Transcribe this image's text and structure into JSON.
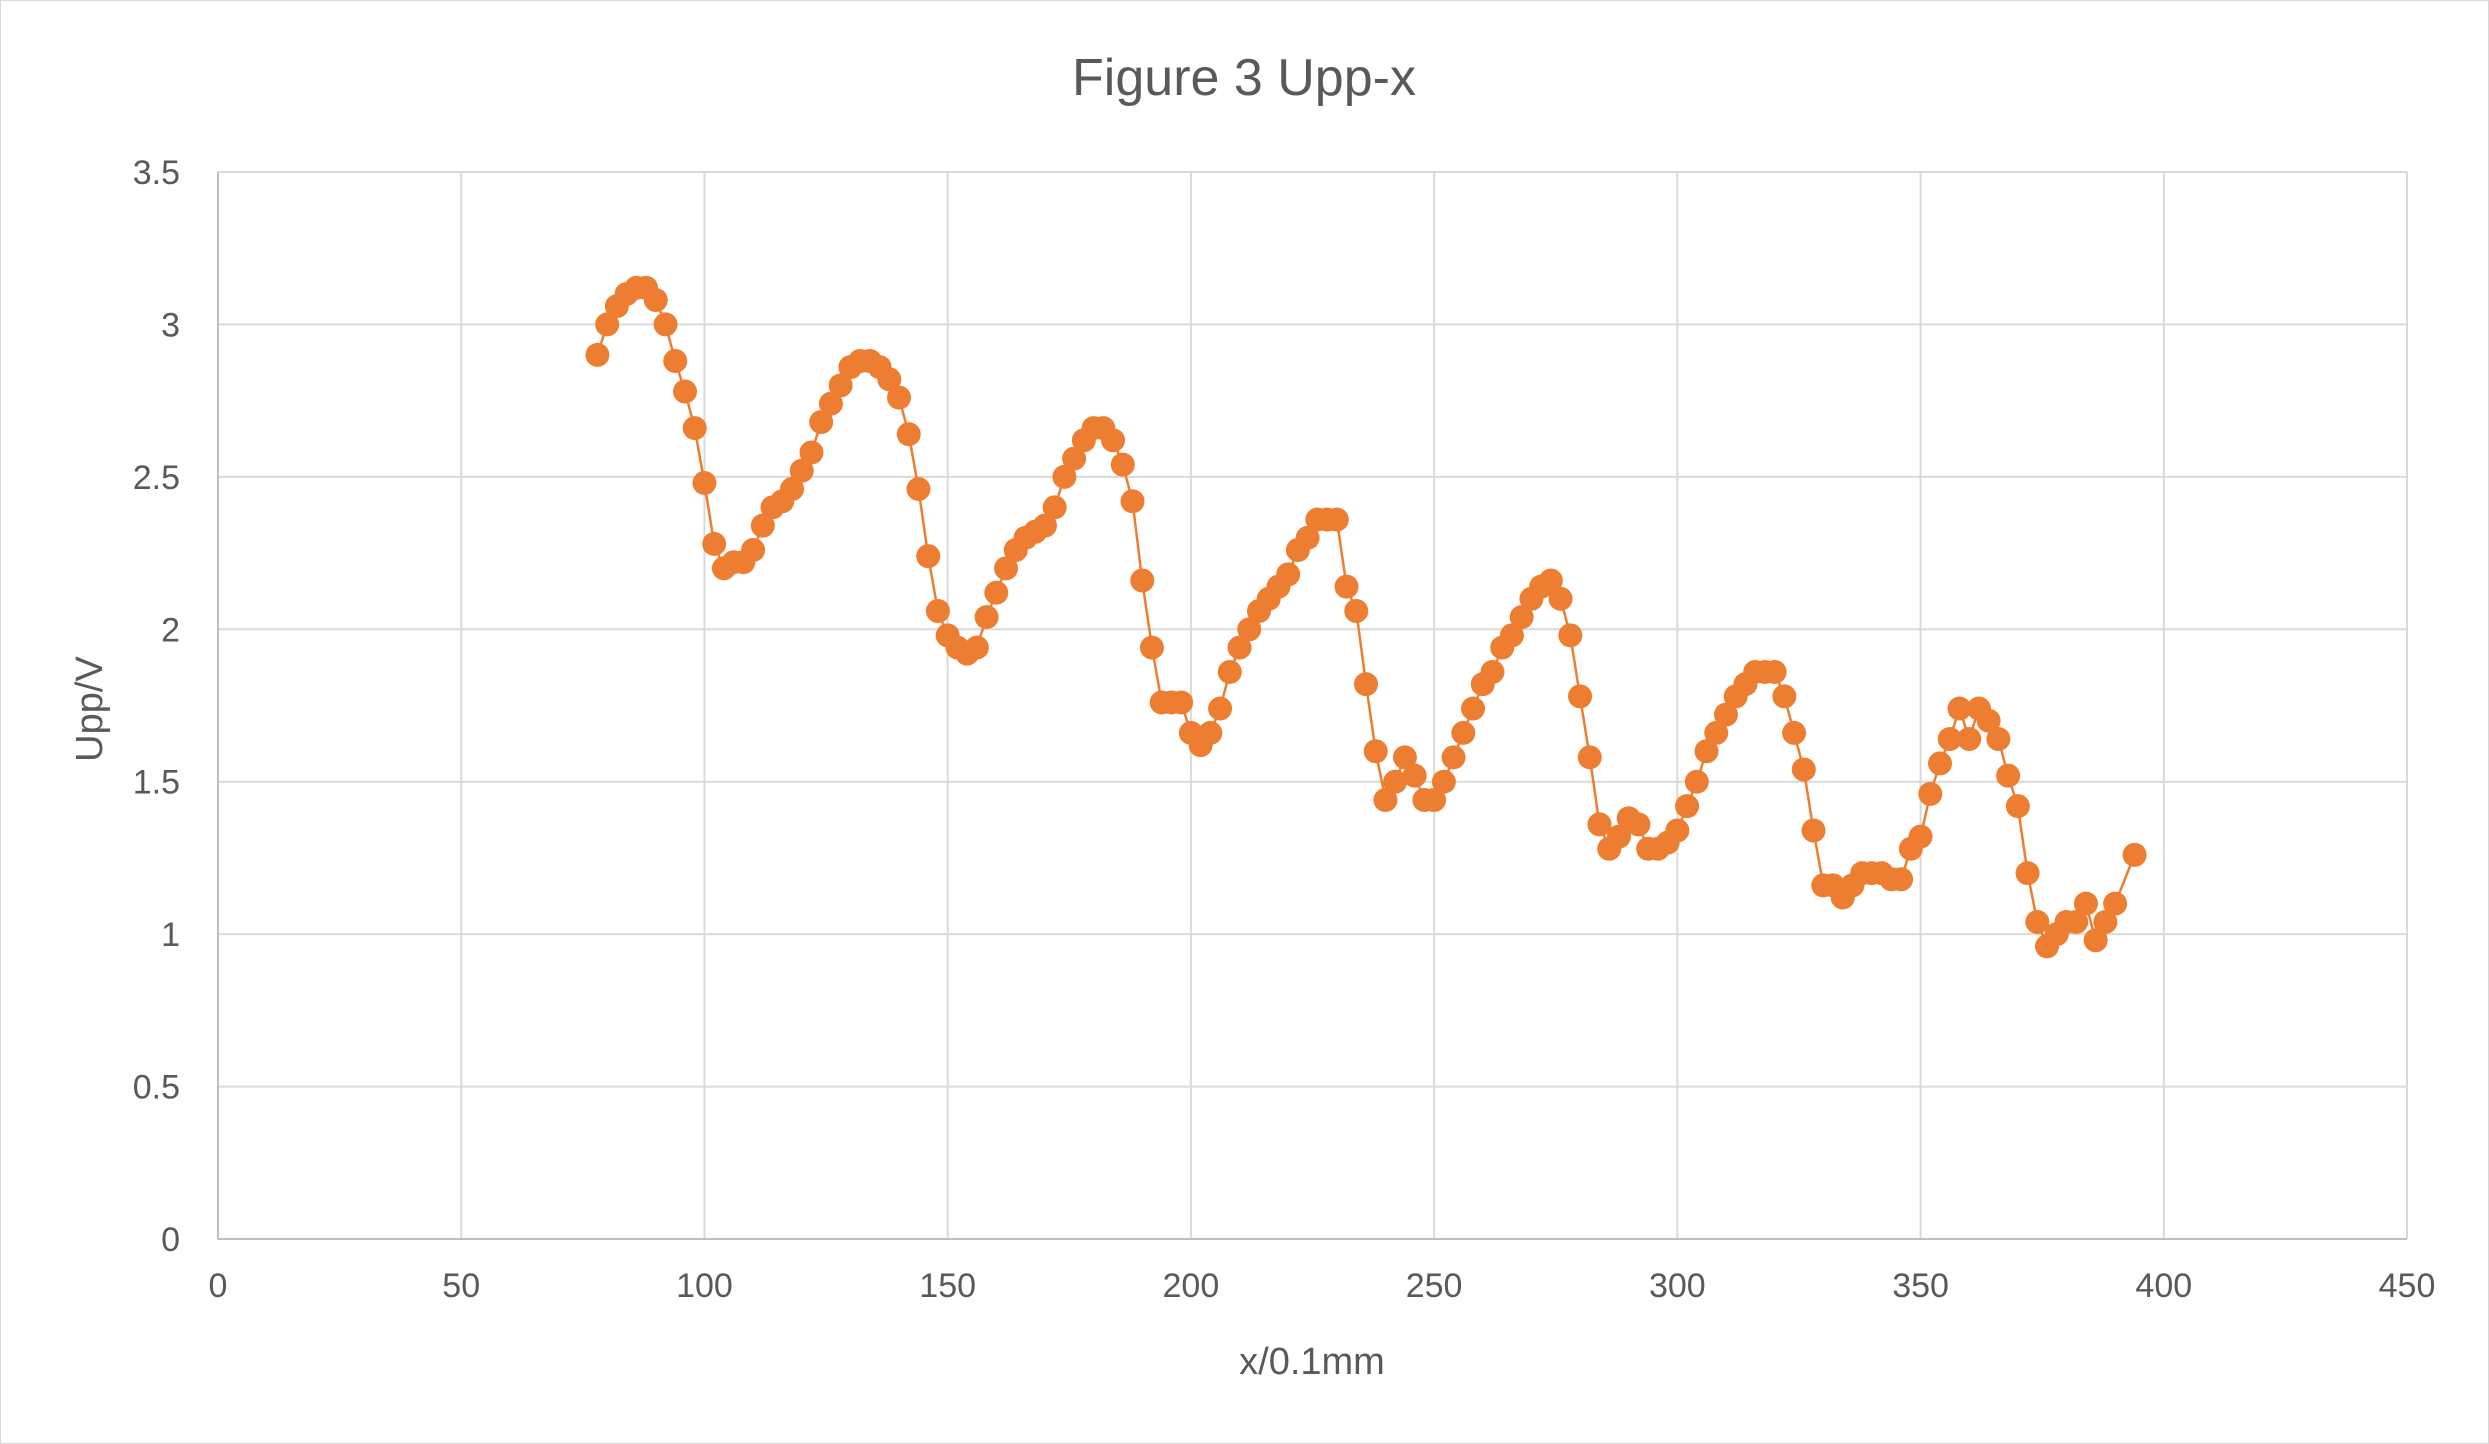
{
  "chart_data": {
    "type": "scatter",
    "title": "Figure 3  Upp-x",
    "xlabel": "x/0.1mm",
    "ylabel": "Upp/V",
    "xlim": [
      0,
      450
    ],
    "ylim": [
      0,
      3.5
    ],
    "x_ticks": [
      "0",
      "50",
      "100",
      "150",
      "200",
      "250",
      "300",
      "350",
      "400",
      "450"
    ],
    "y_ticks": [
      "0",
      "0.5",
      "1",
      "1.5",
      "2",
      "2.5",
      "3",
      "3.5"
    ],
    "grid": true,
    "legend": "none",
    "series": [
      {
        "color": "#ED7D31",
        "line": "straight-with-markers",
        "points": [
          [
            78,
            2.9
          ],
          [
            80,
            3.0
          ],
          [
            82,
            3.06
          ],
          [
            84,
            3.1
          ],
          [
            86,
            3.12
          ],
          [
            88,
            3.12
          ],
          [
            90,
            3.08
          ],
          [
            92,
            3.0
          ],
          [
            94,
            2.88
          ],
          [
            96,
            2.78
          ],
          [
            98,
            2.66
          ],
          [
            100,
            2.48
          ],
          [
            102,
            2.28
          ],
          [
            104,
            2.2
          ],
          [
            106,
            2.22
          ],
          [
            108,
            2.22
          ],
          [
            110,
            2.26
          ],
          [
            112,
            2.34
          ],
          [
            114,
            2.4
          ],
          [
            116,
            2.42
          ],
          [
            118,
            2.46
          ],
          [
            120,
            2.52
          ],
          [
            122,
            2.58
          ],
          [
            124,
            2.68
          ],
          [
            126,
            2.74
          ],
          [
            128,
            2.8
          ],
          [
            130,
            2.86
          ],
          [
            132,
            2.88
          ],
          [
            134,
            2.88
          ],
          [
            136,
            2.86
          ],
          [
            138,
            2.82
          ],
          [
            140,
            2.76
          ],
          [
            142,
            2.64
          ],
          [
            144,
            2.46
          ],
          [
            146,
            2.24
          ],
          [
            148,
            2.06
          ],
          [
            150,
            1.98
          ],
          [
            152,
            1.94
          ],
          [
            154,
            1.92
          ],
          [
            156,
            1.94
          ],
          [
            158,
            2.04
          ],
          [
            160,
            2.12
          ],
          [
            162,
            2.2
          ],
          [
            164,
            2.26
          ],
          [
            166,
            2.3
          ],
          [
            168,
            2.32
          ],
          [
            170,
            2.34
          ],
          [
            172,
            2.4
          ],
          [
            174,
            2.5
          ],
          [
            176,
            2.56
          ],
          [
            178,
            2.62
          ],
          [
            180,
            2.66
          ],
          [
            182,
            2.66
          ],
          [
            184,
            2.62
          ],
          [
            186,
            2.54
          ],
          [
            188,
            2.42
          ],
          [
            190,
            2.16
          ],
          [
            192,
            1.94
          ],
          [
            194,
            1.76
          ],
          [
            196,
            1.76
          ],
          [
            198,
            1.76
          ],
          [
            200,
            1.66
          ],
          [
            202,
            1.62
          ],
          [
            204,
            1.66
          ],
          [
            206,
            1.74
          ],
          [
            208,
            1.86
          ],
          [
            210,
            1.94
          ],
          [
            212,
            2.0
          ],
          [
            214,
            2.06
          ],
          [
            216,
            2.1
          ],
          [
            218,
            2.14
          ],
          [
            220,
            2.18
          ],
          [
            222,
            2.26
          ],
          [
            224,
            2.3
          ],
          [
            226,
            2.36
          ],
          [
            228,
            2.36
          ],
          [
            230,
            2.36
          ],
          [
            232,
            2.14
          ],
          [
            234,
            2.06
          ],
          [
            236,
            1.82
          ],
          [
            238,
            1.6
          ],
          [
            240,
            1.44
          ],
          [
            242,
            1.5
          ],
          [
            244,
            1.58
          ],
          [
            246,
            1.52
          ],
          [
            248,
            1.44
          ],
          [
            250,
            1.44
          ],
          [
            252,
            1.5
          ],
          [
            254,
            1.58
          ],
          [
            256,
            1.66
          ],
          [
            258,
            1.74
          ],
          [
            260,
            1.82
          ],
          [
            262,
            1.86
          ],
          [
            264,
            1.94
          ],
          [
            266,
            1.98
          ],
          [
            268,
            2.04
          ],
          [
            270,
            2.1
          ],
          [
            272,
            2.14
          ],
          [
            274,
            2.16
          ],
          [
            276,
            2.1
          ],
          [
            278,
            1.98
          ],
          [
            280,
            1.78
          ],
          [
            282,
            1.58
          ],
          [
            284,
            1.36
          ],
          [
            286,
            1.28
          ],
          [
            288,
            1.32
          ],
          [
            290,
            1.38
          ],
          [
            292,
            1.36
          ],
          [
            294,
            1.28
          ],
          [
            296,
            1.28
          ],
          [
            298,
            1.3
          ],
          [
            300,
            1.34
          ],
          [
            302,
            1.42
          ],
          [
            304,
            1.5
          ],
          [
            306,
            1.6
          ],
          [
            308,
            1.66
          ],
          [
            310,
            1.72
          ],
          [
            312,
            1.78
          ],
          [
            314,
            1.82
          ],
          [
            316,
            1.86
          ],
          [
            318,
            1.86
          ],
          [
            320,
            1.86
          ],
          [
            322,
            1.78
          ],
          [
            324,
            1.66
          ],
          [
            326,
            1.54
          ],
          [
            328,
            1.34
          ],
          [
            330,
            1.16
          ],
          [
            332,
            1.16
          ],
          [
            334,
            1.12
          ],
          [
            336,
            1.16
          ],
          [
            338,
            1.2
          ],
          [
            340,
            1.2
          ],
          [
            342,
            1.2
          ],
          [
            344,
            1.18
          ],
          [
            346,
            1.18
          ],
          [
            348,
            1.28
          ],
          [
            350,
            1.32
          ],
          [
            352,
            1.46
          ],
          [
            354,
            1.56
          ],
          [
            356,
            1.64
          ],
          [
            358,
            1.74
          ],
          [
            360,
            1.64
          ],
          [
            362,
            1.74
          ],
          [
            364,
            1.7
          ],
          [
            366,
            1.64
          ],
          [
            368,
            1.52
          ],
          [
            370,
            1.42
          ],
          [
            372,
            1.2
          ],
          [
            374,
            1.04
          ],
          [
            376,
            0.96
          ],
          [
            378,
            1.0
          ],
          [
            380,
            1.04
          ],
          [
            382,
            1.04
          ],
          [
            384,
            1.1
          ],
          [
            386,
            0.98
          ],
          [
            388,
            1.04
          ],
          [
            390,
            1.1
          ],
          [
            394,
            1.26
          ]
        ]
      }
    ]
  }
}
